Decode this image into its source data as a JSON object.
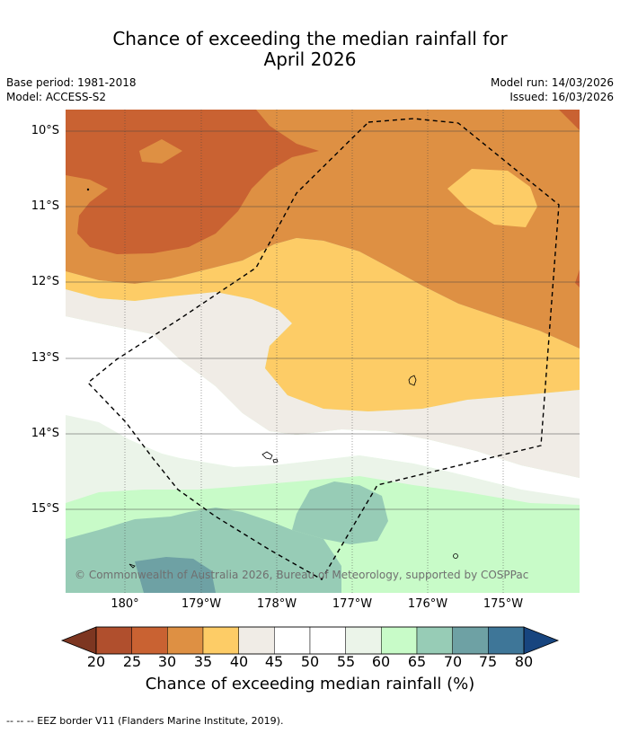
{
  "title_line1": "Chance of exceeding the median rainfall for",
  "title_line2": "April 2026",
  "meta": {
    "base_period": "Base period: 1981-2018",
    "model": "Model: ACCESS-S2",
    "model_run": "Model run: 14/03/2026",
    "issued": "Issued: 16/03/2026"
  },
  "map": {
    "lat_labels": [
      "10°S",
      "11°S",
      "12°S",
      "13°S",
      "14°S",
      "15°S"
    ],
    "lon_labels": [
      "180°",
      "179°W",
      "178°W",
      "177°W",
      "176°W",
      "175°W"
    ],
    "copyright": "© Commonwealth of Australia 2026, Bureau of Meteorology, supported by COSPPac"
  },
  "colorbar": {
    "ticks": [
      "20",
      "25",
      "30",
      "35",
      "40",
      "45",
      "50",
      "55",
      "60",
      "65",
      "70",
      "75",
      "80"
    ],
    "colors": [
      "#7d3621",
      "#b04f2d",
      "#c96232",
      "#de9043",
      "#fdcc66",
      "#f0ece6",
      "#ffffff",
      "#ffffff",
      "#ebf4e9",
      "#c8fbc8",
      "#97ccb6",
      "#6ea1a4",
      "#3e7698",
      "#17457f"
    ],
    "title": "Chance of exceeding median rainfall (%)"
  },
  "footnote": "--  --  -- EEZ border V11 (Flanders Marine Institute, 2019)."
}
